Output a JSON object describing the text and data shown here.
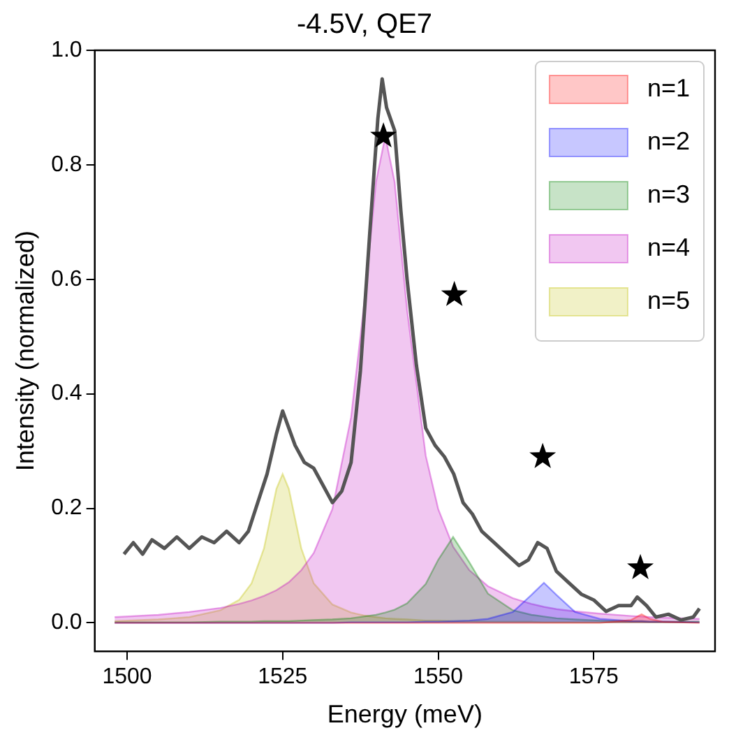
{
  "chart_data": {
    "type": "area",
    "title": "-4.5V, QE7",
    "xlabel": "Energy (meV)",
    "ylabel": "Intensity (normalized)",
    "x": [
      1498,
      1505,
      1510,
      1515,
      1518,
      1520,
      1522,
      1524,
      1525,
      1526,
      1528,
      1530,
      1533,
      1536,
      1538,
      1540,
      1541.5,
      1543,
      1545,
      1548,
      1550,
      1552.4,
      1555,
      1558,
      1562,
      1565,
      1567,
      1569,
      1572,
      1576,
      1581,
      1582.7,
      1584,
      1586,
      1592
    ],
    "series": [
      {
        "name": "n=1",
        "color": "#ff0000",
        "values": [
          0,
          0,
          0,
          0,
          0,
          0,
          0,
          0,
          0,
          0,
          0,
          0,
          0,
          0,
          0,
          0,
          0,
          0,
          0,
          0,
          0,
          0,
          0,
          0,
          0,
          0,
          0,
          0,
          0,
          0,
          0.005,
          0.015,
          0.007,
          0.002,
          0
        ]
      },
      {
        "name": "n=2",
        "color": "#0000ff",
        "values": [
          0,
          0,
          0,
          0,
          0,
          0,
          0,
          0,
          0,
          0,
          0,
          0,
          0,
          0.001,
          0.001,
          0.001,
          0.001,
          0.001,
          0.001,
          0.002,
          0.002,
          0.003,
          0.004,
          0.007,
          0.019,
          0.049,
          0.07,
          0.049,
          0.019,
          0.007,
          0.003,
          0.003,
          0.002,
          0.002,
          0.001
        ]
      },
      {
        "name": "n=3",
        "color": "#008000",
        "values": [
          0.001,
          0.001,
          0.001,
          0.002,
          0.002,
          0.002,
          0.003,
          0.003,
          0.003,
          0.003,
          0.004,
          0.005,
          0.006,
          0.008,
          0.011,
          0.014,
          0.018,
          0.023,
          0.034,
          0.068,
          0.11,
          0.15,
          0.106,
          0.051,
          0.022,
          0.014,
          0.011,
          0.008,
          0.006,
          0.004,
          0.003,
          0.003,
          0.002,
          0.002,
          0.002
        ]
      },
      {
        "name": "n=4",
        "color": "#bf00bf",
        "values": [
          0.01,
          0.014,
          0.019,
          0.026,
          0.033,
          0.039,
          0.047,
          0.057,
          0.064,
          0.071,
          0.092,
          0.122,
          0.199,
          0.359,
          0.547,
          0.77,
          0.85,
          0.77,
          0.547,
          0.292,
          0.199,
          0.133,
          0.092,
          0.064,
          0.043,
          0.033,
          0.028,
          0.024,
          0.02,
          0.016,
          0.012,
          0.011,
          0.01,
          0.009,
          0.007
        ]
      },
      {
        "name": "n=5",
        "color": "#bfbf00",
        "values": [
          0.003,
          0.006,
          0.01,
          0.022,
          0.04,
          0.069,
          0.13,
          0.234,
          0.26,
          0.234,
          0.13,
          0.069,
          0.032,
          0.018,
          0.013,
          0.01,
          0.008,
          0.007,
          0.006,
          0.004,
          0.004,
          0.003,
          0.003,
          0.002,
          0.002,
          0.002,
          0.001,
          0.001,
          0.001,
          0.001,
          0.001,
          0.001,
          0.001,
          0.001,
          0.001
        ]
      },
      {
        "type": "line",
        "color": "#555555",
        "x": [
          1499.5,
          1501,
          1502.5,
          1504,
          1506,
          1508,
          1510,
          1512,
          1514,
          1516,
          1518,
          1519.5,
          1521,
          1522.5,
          1524,
          1525,
          1526,
          1527,
          1528.5,
          1530,
          1531.5,
          1533,
          1534.5,
          1536,
          1537.5,
          1539,
          1540.3,
          1541,
          1541.7,
          1543,
          1544,
          1545,
          1546.5,
          1548,
          1549.5,
          1551,
          1552.5,
          1554,
          1555.5,
          1557,
          1559,
          1561,
          1563,
          1564.5,
          1566,
          1567.5,
          1569,
          1571,
          1573,
          1575,
          1577,
          1579,
          1581,
          1582,
          1583.5,
          1585,
          1587,
          1589,
          1591,
          1592
        ],
        "values": [
          0.12,
          0.14,
          0.12,
          0.145,
          0.13,
          0.15,
          0.13,
          0.15,
          0.14,
          0.16,
          0.14,
          0.16,
          0.21,
          0.26,
          0.33,
          0.37,
          0.34,
          0.31,
          0.28,
          0.27,
          0.24,
          0.21,
          0.23,
          0.28,
          0.44,
          0.68,
          0.88,
          0.95,
          0.9,
          0.86,
          0.72,
          0.6,
          0.45,
          0.34,
          0.31,
          0.29,
          0.26,
          0.21,
          0.19,
          0.16,
          0.14,
          0.12,
          0.1,
          0.11,
          0.14,
          0.13,
          0.09,
          0.07,
          0.05,
          0.04,
          0.02,
          0.03,
          0.03,
          0.045,
          0.03,
          0.01,
          0.015,
          0.005,
          0.01,
          0.025
        ]
      },
      {
        "type": "scatter",
        "marker": "star",
        "color": "#000000",
        "x": [
          1541.2,
          1552.6,
          1566.8,
          1582.5
        ],
        "values": [
          0.85,
          0.573,
          0.29,
          0.096
        ]
      }
    ],
    "xlim": [
      1494.8,
      1594.5
    ],
    "ylim": [
      -0.05,
      1.0
    ],
    "xticks": [
      1500,
      1525,
      1550,
      1575
    ],
    "yticks": [
      {
        "value": 0,
        "label": "0.0"
      },
      {
        "value": 0.2,
        "label": "0.2"
      },
      {
        "value": 0.4,
        "label": "0.4"
      },
      {
        "value": 0.6,
        "label": "0.6"
      },
      {
        "value": 0.8,
        "label": "0.8"
      },
      {
        "value": 1,
        "label": "1.0"
      }
    ],
    "grid": false,
    "legend": "top right"
  }
}
